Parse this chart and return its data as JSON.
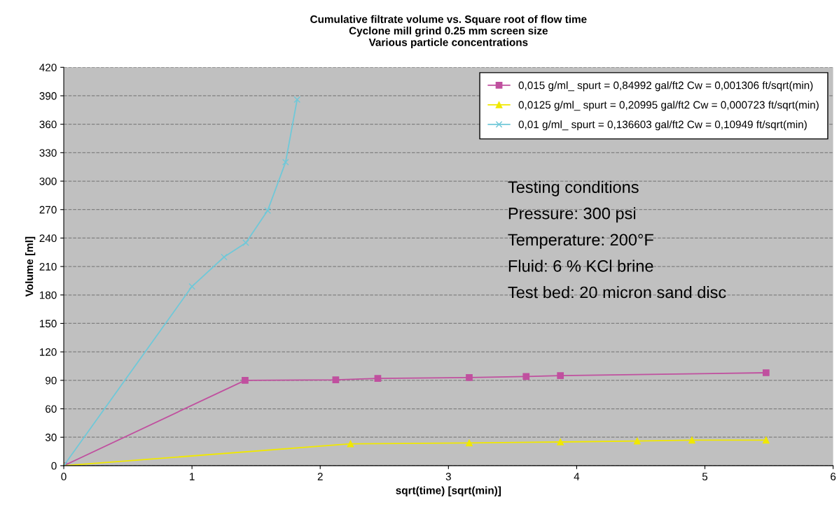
{
  "chart_data": {
    "type": "line",
    "title": "Cumulative filtrate volume vs. Square root of flow time\nCyclone mill grind 0.25 mm screen size\nVarious particle concentrations",
    "xlabel": "sqrt(time) [sqrt(min)]",
    "ylabel": "Volume [ml]",
    "series": [
      {
        "name": "0,015 g/ml_ spurt = 0,84992 gal/ft2 Cw = 0,001306 ft/sqrt(min)",
        "color": "#c0509f",
        "marker": "square",
        "x": [
          0,
          1.414,
          2.121,
          2.449,
          3.162,
          3.606,
          3.873,
          5.477
        ],
        "values": [
          0,
          90,
          90.5,
          92,
          93,
          94,
          95,
          98
        ]
      },
      {
        "name": "0,0125 g/ml_ spurt = 0,20995 gal/ft2 Cw = 0,000723 ft/sqrt(min)",
        "color": "#f0e800",
        "marker": "triangle",
        "x": [
          0,
          2.236,
          3.162,
          3.873,
          4.472,
          4.899,
          5.477
        ],
        "values": [
          0,
          23,
          24,
          25,
          26,
          27,
          27
        ]
      },
      {
        "name": "0,01 g/ml_ spurt = 0,136603 gal/ft2 Cw = 0,10949 ft/sqrt(min)",
        "color": "#70c8d8",
        "marker": "cross",
        "x": [
          0,
          1.0,
          1.25,
          1.42,
          1.59,
          1.73,
          1.82
        ],
        "values": [
          0,
          189,
          220,
          235,
          269,
          320,
          386
        ]
      }
    ],
    "annotations": [
      "Testing conditions",
      "Pressure: 300 psi",
      "Temperature: 200°F",
      "Fluid: 6 % KCl brine",
      "Test bed: 20 micron sand disc"
    ],
    "xlim": [
      0,
      6
    ],
    "xticks": [
      0,
      1,
      2,
      3,
      4,
      5,
      6
    ],
    "ylim": [
      0,
      420
    ],
    "yticks": [
      0,
      30,
      60,
      90,
      120,
      150,
      180,
      210,
      240,
      270,
      300,
      330,
      360,
      390,
      420
    ],
    "grid": "y",
    "legend": "top right",
    "line_style": "solid"
  }
}
